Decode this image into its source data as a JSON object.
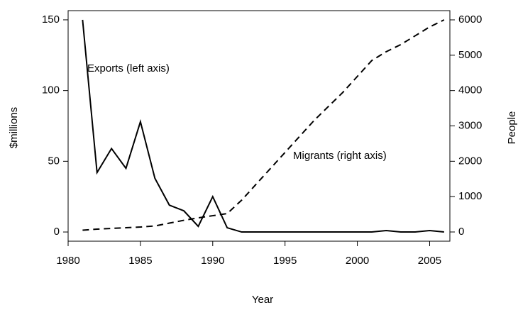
{
  "chart_data": {
    "type": "line",
    "x_label": "Year",
    "y_label": "$millions",
    "y2_label": "People",
    "annotations": [
      "Exports (left axis)",
      "Migrants (right axis)"
    ],
    "x": [
      1981,
      1982,
      1983,
      1984,
      1985,
      1986,
      1987,
      1988,
      1989,
      1990,
      1991,
      1992,
      1993,
      1994,
      1995,
      1996,
      1997,
      1998,
      1999,
      2000,
      2001,
      2002,
      2003,
      2004,
      2005,
      2006
    ],
    "series": [
      {
        "name": "Exports",
        "color": "#000000",
        "linestyle": "solid",
        "axis": "y",
        "values": [
          150,
          42,
          59,
          45,
          78,
          38,
          19,
          15,
          4,
          25,
          3,
          0,
          0,
          0,
          0,
          0,
          0,
          0,
          0,
          0,
          0,
          1,
          0,
          0,
          1,
          0
        ]
      },
      {
        "name": "Migrants",
        "color": "#000000",
        "linestyle": "dashed",
        "axis": "y2",
        "values": [
          50,
          80,
          100,
          120,
          140,
          170,
          250,
          330,
          400,
          460,
          520,
          900,
          1350,
          1800,
          2250,
          2700,
          3150,
          3550,
          3950,
          4400,
          4850,
          5100,
          5300,
          5550,
          5800,
          6000
        ]
      }
    ],
    "xlim": [
      1980,
      2006.4
    ],
    "xticks": [
      1980,
      1985,
      1990,
      1995,
      2000,
      2005
    ],
    "ylim": [
      -6.5,
      156.5
    ],
    "yticks": [
      0,
      50,
      100,
      150
    ],
    "y2lim": [
      -261,
      6261
    ],
    "y2ticks": [
      0,
      1000,
      2000,
      3000,
      4000,
      5000,
      6000
    ]
  }
}
